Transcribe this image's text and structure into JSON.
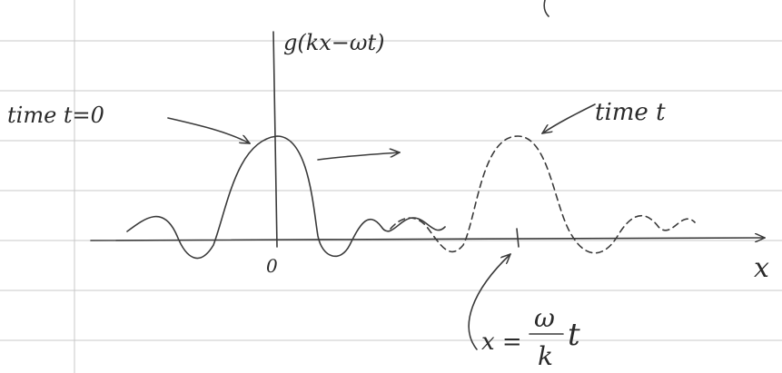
{
  "axis_label": "g(kx−ωt)",
  "labels": {
    "time_zero": "time t=0",
    "time_t": "time t",
    "origin": "0",
    "x_axis": "x"
  },
  "position": {
    "lhs": "x =",
    "numerator": "ω",
    "denominator": "k",
    "factor": "t"
  }
}
